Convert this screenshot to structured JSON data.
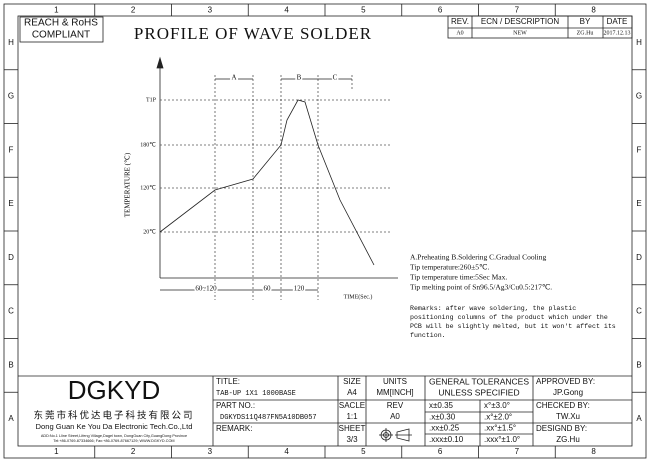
{
  "grid_columns": [
    "1",
    "2",
    "3",
    "4",
    "5",
    "6",
    "7",
    "8"
  ],
  "grid_rows": [
    "H",
    "G",
    "F",
    "E",
    "D",
    "C",
    "B",
    "A"
  ],
  "compliance": [
    "REACH & RoHS",
    "COMPLIANT"
  ],
  "title": "PROFILE OF WAVE SOLDER",
  "revision_table": {
    "headers": [
      "REV.",
      "ECN / DESCRIPTION",
      "BY",
      "DATE"
    ],
    "rows": [
      [
        "A0",
        "NEW",
        "ZG.Hu",
        "2017.12.13"
      ]
    ]
  },
  "profile": {
    "y_axis_label": "TEMPERATURE (℃)",
    "x_axis_label": "TIME(Sec.)",
    "y_labels": [
      "T1P",
      "180℃",
      "120℃",
      "20℃"
    ],
    "phases": [
      "A",
      "B",
      "C"
    ],
    "durations": [
      "60~120",
      "60",
      "120"
    ]
  },
  "notes": [
    "A.Preheating  B.Soldering  C.Gradual Cooling",
    "Tip temperature:260±5℃.",
    "Tip temperature time:5Sec Max.",
    "Tip melting point of Sn96.5/Ag3/Cu0.5:217℃."
  ],
  "remarks": [
    "Remarks: after wave soldering, the plastic",
    "positioning columns of the product  which under the",
    "PCB will be slightly melted, but it won't affect its",
    "function."
  ],
  "title_block": {
    "company": {
      "logo": "DGKYD",
      "chinese_name": "东莞市科优达电子科技有限公司",
      "english_name": "Dong Guan Ke You Da Electronic Tech.Co.,Ltd",
      "address": "ADD:No.1 Lline Street,Lifeng Village,Dagel town, DongGuan City,GuangDong Province",
      "contact": "Tel:+86-0769-87334666; Fax:+86-0769-87667129; WWW.DGKYD.COM"
    },
    "title_label": "TITLE:",
    "title_value": "TAB-UP 1X1 1000BASE",
    "part_label": "PART NO.:",
    "part_value": "DGKYDS11Q487FN5A10DB057",
    "remark_label": "REMARK:",
    "size_label": "SIZE",
    "size_value": "A4",
    "scale_label": "SACLE",
    "scale_value": "1:1",
    "sheet_label": "SHEET",
    "sheet_value": "3/3",
    "units_label": "UNITS",
    "units_value": "MM[INCH]",
    "rev_label": "REV",
    "rev_value": "A0",
    "tolerance_header": [
      "GENERAL TOLERANCES",
      "UNLESS SPECIFIED"
    ],
    "tolerances": [
      [
        "x±0.35",
        "x°±3.0°"
      ],
      [
        ".x±0.30",
        ".x°±2.0°"
      ],
      [
        ".xx±0.25",
        ".xx°±1.5°"
      ],
      [
        ".xxx±0.10",
        ".xxx°±1.0°"
      ]
    ],
    "approved_label": "APPROVED BY:",
    "approved_value": "JP.Gong",
    "checked_label": "CHECKED BY:",
    "checked_value": "TW.Xu",
    "designed_label": "DESIGND BY:",
    "designed_value": "ZG.Hu"
  }
}
